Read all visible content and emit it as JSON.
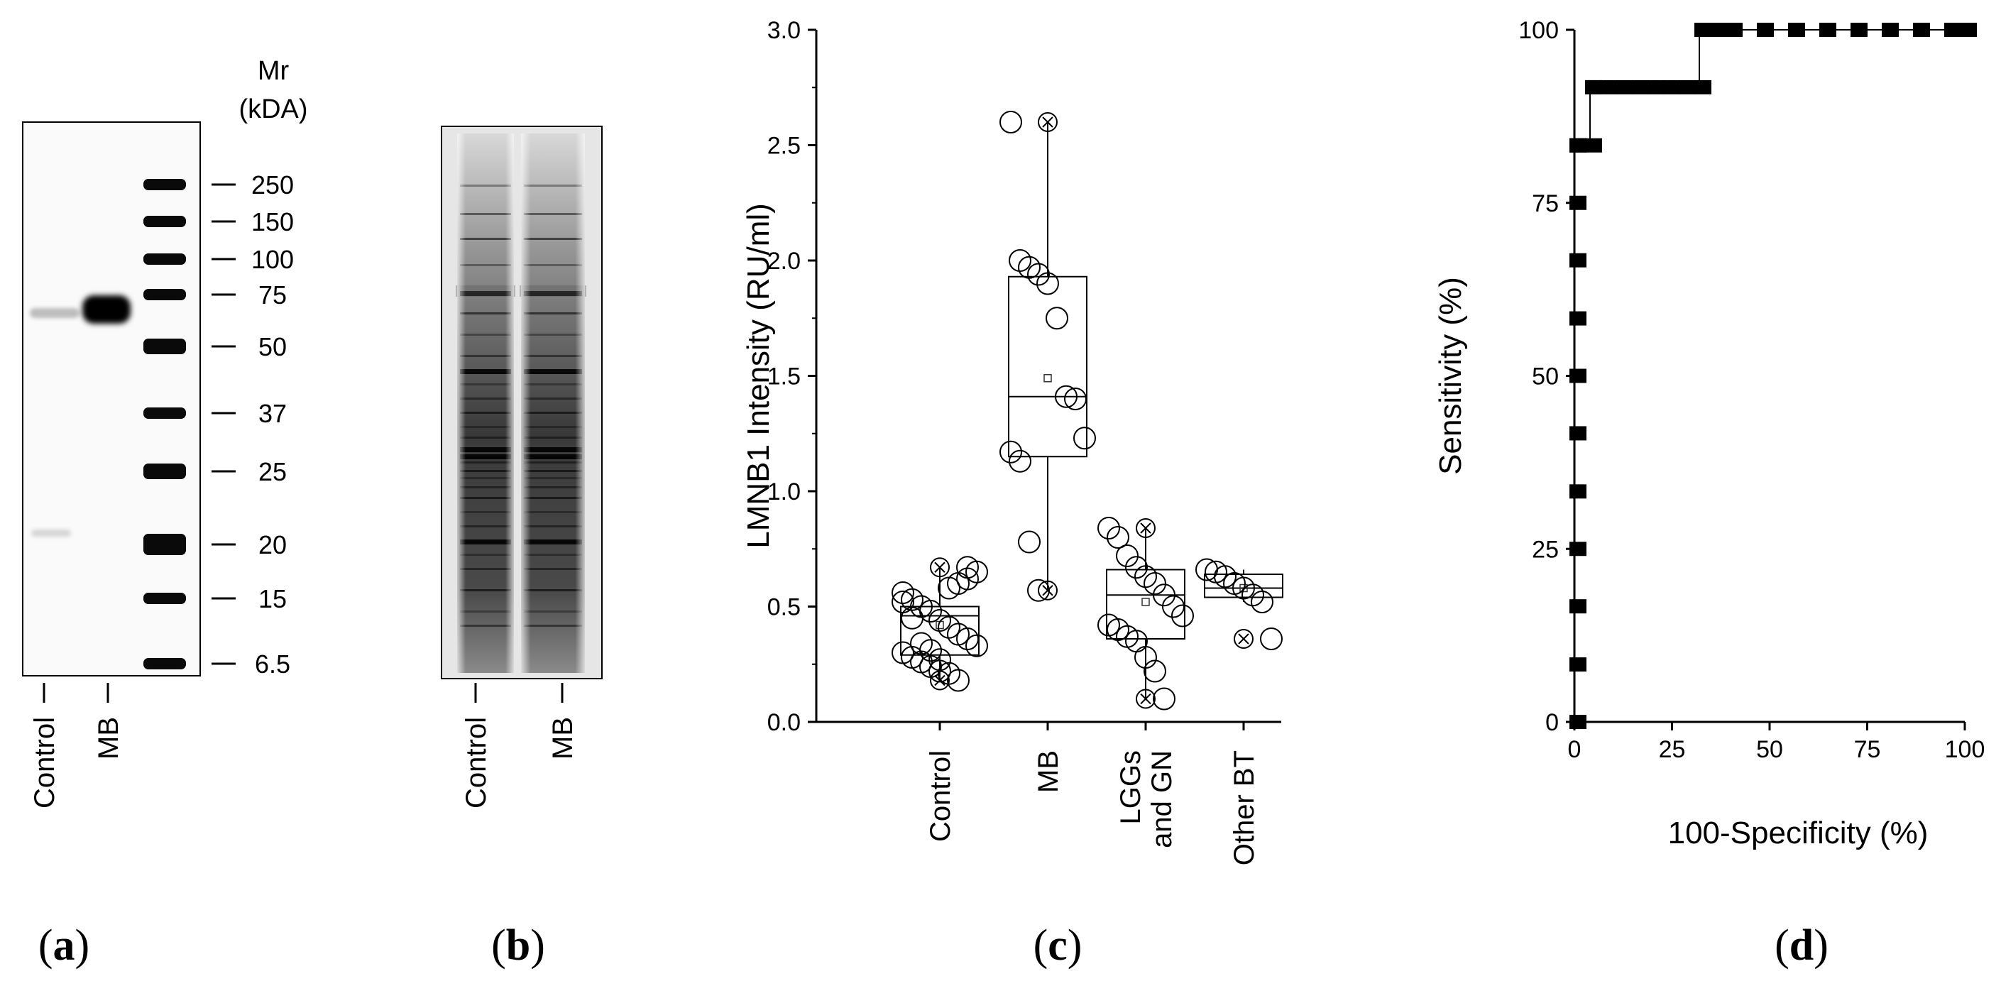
{
  "panels": {
    "a": {
      "letter": "a",
      "mw_header_line1": "Mr",
      "mw_header_line2": "(kDA)",
      "marker_labels": [
        "250",
        "150",
        "100",
        "75",
        "50",
        "37",
        "25",
        "20",
        "15",
        "6.5"
      ],
      "lane_labels": [
        "Control",
        "MB"
      ]
    },
    "b": {
      "letter": "b",
      "lane_labels": [
        "Control",
        "MB"
      ]
    },
    "c": {
      "letter": "c"
    },
    "d": {
      "letter": "d"
    }
  },
  "chart_data": [
    {
      "panel": "c",
      "type": "box",
      "ylabel": "LMNB1 Intensity (RU/ml)",
      "ylim": [
        0,
        3.0
      ],
      "yticks": [
        "0.0",
        "0.5",
        "1.0",
        "1.5",
        "2.0",
        "2.5",
        "3.0"
      ],
      "categories": [
        "Control",
        "MB",
        "LGGs and GN",
        "Other BT"
      ],
      "category_lines": [
        [
          "Control"
        ],
        [
          "MB"
        ],
        [
          "LGGs",
          "and GN"
        ],
        [
          "Other BT"
        ]
      ],
      "groups": [
        {
          "category": "Control",
          "q1": 0.29,
          "median": 0.46,
          "q3": 0.5,
          "min": 0.18,
          "max": 0.67,
          "mean": 0.42,
          "points": [
            0.56,
            0.53,
            0.5,
            0.48,
            0.44,
            0.41,
            0.38,
            0.36,
            0.33,
            0.3,
            0.28,
            0.26,
            0.24,
            0.22,
            0.58,
            0.6,
            0.62,
            0.65,
            0.52,
            0.45,
            0.34,
            0.31,
            0.27,
            0.21,
            0.18,
            0.67
          ],
          "outliers": [
            0.67,
            0.18
          ]
        },
        {
          "category": "MB",
          "q1": 1.15,
          "median": 1.41,
          "q3": 1.93,
          "min": 0.57,
          "max": 2.6,
          "mean": 1.49,
          "points": [
            2.6,
            2.0,
            1.97,
            1.94,
            1.9,
            1.75,
            1.41,
            1.4,
            1.23,
            1.17,
            1.13,
            0.78,
            0.57
          ],
          "outliers": [
            2.6,
            0.57
          ]
        },
        {
          "category": "LGGs and GN",
          "q1": 0.36,
          "median": 0.55,
          "q3": 0.66,
          "min": 0.1,
          "max": 0.84,
          "mean": 0.52,
          "points": [
            0.84,
            0.8,
            0.72,
            0.67,
            0.63,
            0.6,
            0.55,
            0.5,
            0.46,
            0.42,
            0.4,
            0.37,
            0.35,
            0.28,
            0.22,
            0.1
          ],
          "outliers": [
            0.84,
            0.1
          ]
        },
        {
          "category": "Other BT",
          "q1": 0.54,
          "median": 0.58,
          "q3": 0.64,
          "min": 0.52,
          "max": 0.66,
          "mean": 0.58,
          "points": [
            0.66,
            0.65,
            0.63,
            0.6,
            0.58,
            0.55,
            0.52,
            0.36
          ],
          "outliers": [
            0.36
          ]
        }
      ]
    },
    {
      "panel": "d",
      "type": "line",
      "xlabel": "100-Specificity (%)",
      "ylabel": "Sensitivity (%)",
      "xlim": [
        0,
        100
      ],
      "ylim": [
        0,
        100
      ],
      "xticks": [
        "0",
        "25",
        "50",
        "75",
        "100"
      ],
      "yticks": [
        "0",
        "25",
        "50",
        "75",
        "100"
      ],
      "x": [
        0,
        0,
        0,
        0,
        0,
        0,
        0,
        0,
        0,
        0,
        0,
        0,
        0,
        4,
        4,
        4,
        8,
        12,
        16,
        20,
        24,
        28,
        32,
        32,
        36,
        40,
        48,
        56,
        64,
        72,
        80,
        88,
        96,
        100
      ],
      "y": [
        0,
        8.3,
        16.7,
        25,
        33.3,
        41.7,
        50,
        58.3,
        66.7,
        75,
        83.3,
        83.3,
        83.3,
        83.3,
        91.7,
        91.7,
        91.7,
        91.7,
        91.7,
        91.7,
        91.7,
        91.7,
        91.7,
        100,
        100,
        100,
        100,
        100,
        100,
        100,
        100,
        100,
        100,
        100
      ]
    }
  ]
}
